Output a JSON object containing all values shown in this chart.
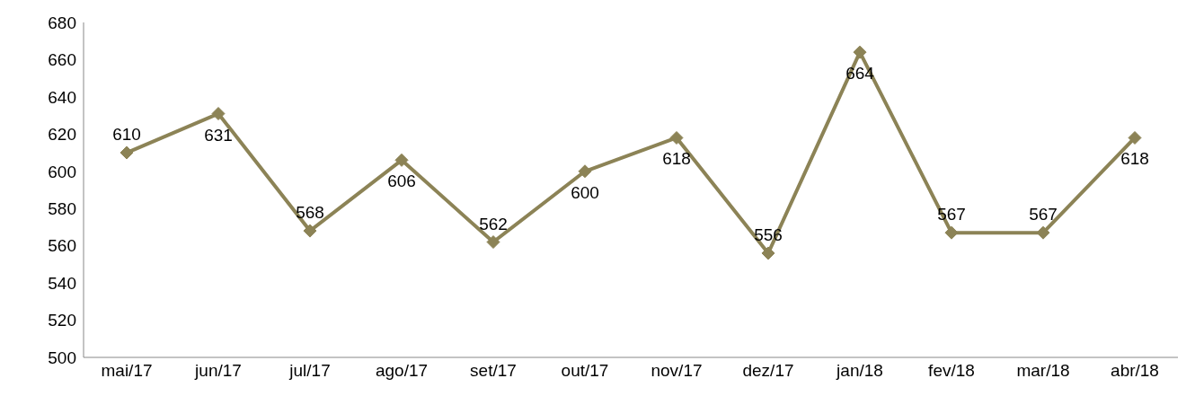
{
  "chart_data": {
    "type": "line",
    "categories": [
      "mai/17",
      "jun/17",
      "jul/17",
      "ago/17",
      "set/17",
      "out/17",
      "nov/17",
      "dez/17",
      "jan/18",
      "fev/18",
      "mar/18",
      "abr/18"
    ],
    "series": [
      {
        "color": "#8c8356",
        "values": [
          610,
          631,
          568,
          606,
          562,
          600,
          618,
          556,
          664,
          567,
          567,
          618
        ]
      }
    ],
    "ylim": [
      500,
      680
    ],
    "yticks": [
      500,
      520,
      540,
      560,
      580,
      600,
      620,
      640,
      660,
      680
    ],
    "grid": false,
    "legend": false,
    "marker": "diamond",
    "line_style": "solid",
    "data_labels": true
  }
}
